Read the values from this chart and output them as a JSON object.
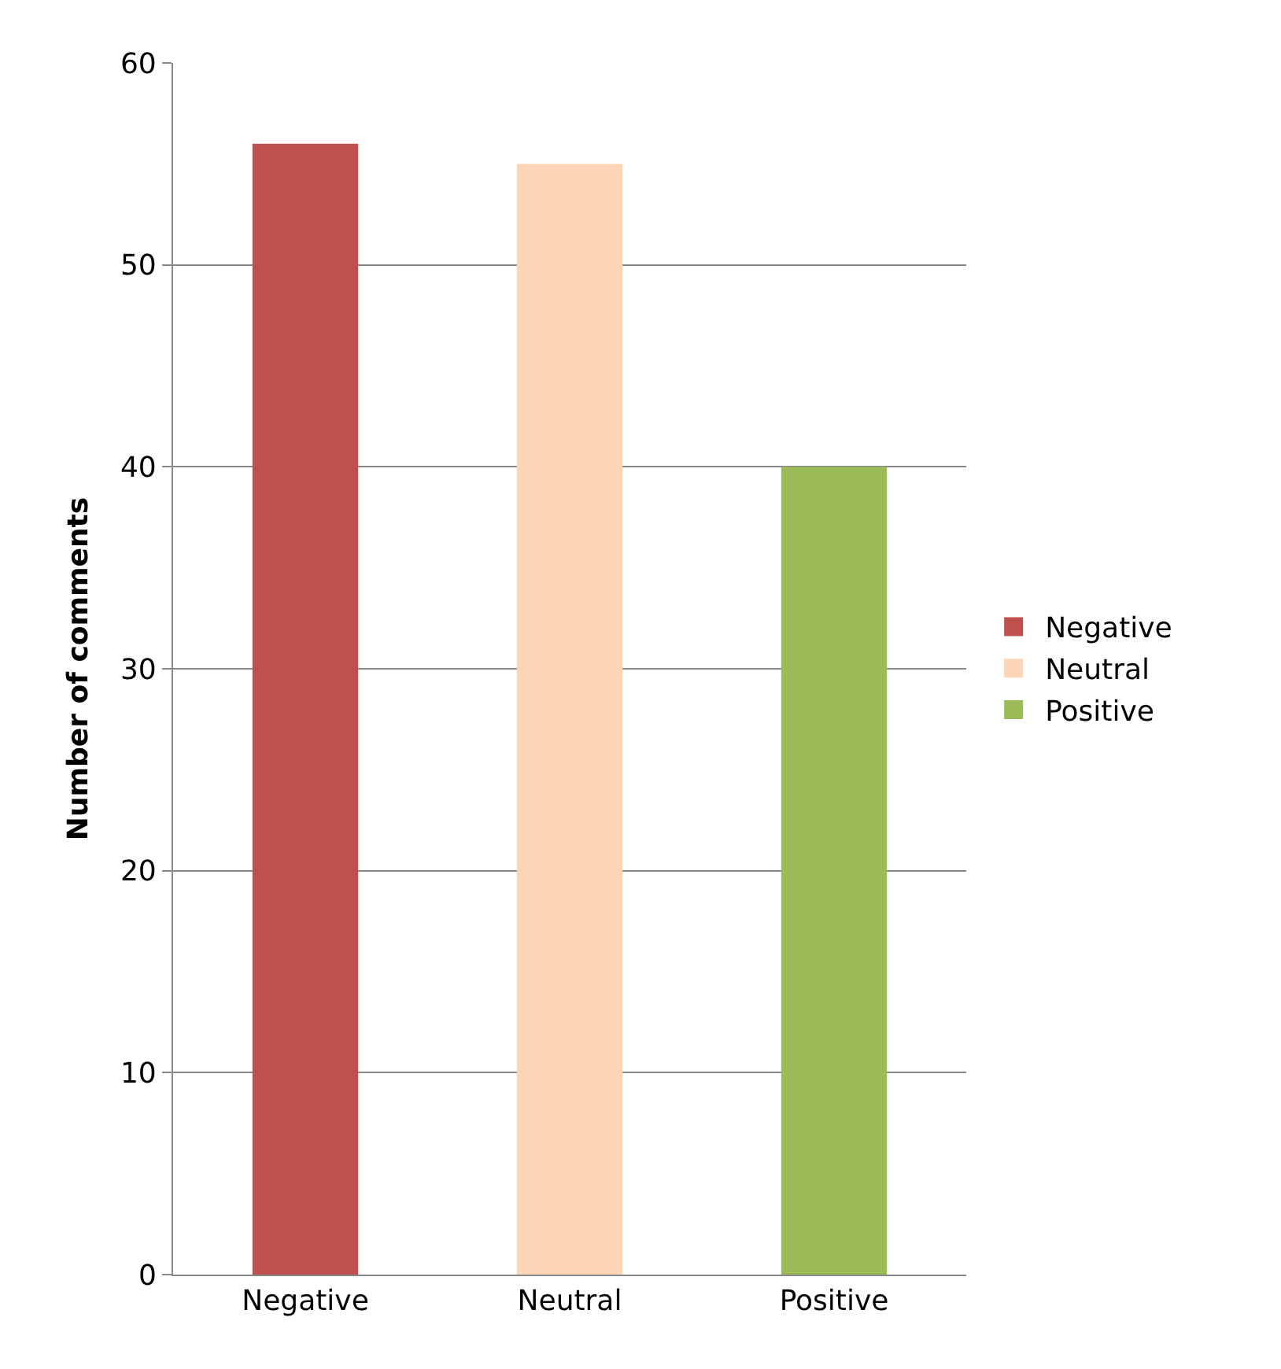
{
  "chart_data": {
    "type": "bar",
    "ylabel": "Number of comments",
    "categories": [
      "Negative",
      "Neutral",
      "Positive"
    ],
    "series": [
      {
        "name": "Negative",
        "color": "#c0504d",
        "values": [
          56,
          null,
          null
        ]
      },
      {
        "name": "Neutral",
        "color": "#fbd5b5",
        "values": [
          null,
          55,
          null
        ]
      },
      {
        "name": "Positive",
        "color": "#9bbb59",
        "values": [
          null,
          null,
          40
        ]
      }
    ],
    "ylim": [
      0,
      60
    ],
    "yticks": [
      0,
      10,
      20,
      30,
      40,
      50,
      60
    ],
    "grid": "y",
    "legend": "right"
  }
}
